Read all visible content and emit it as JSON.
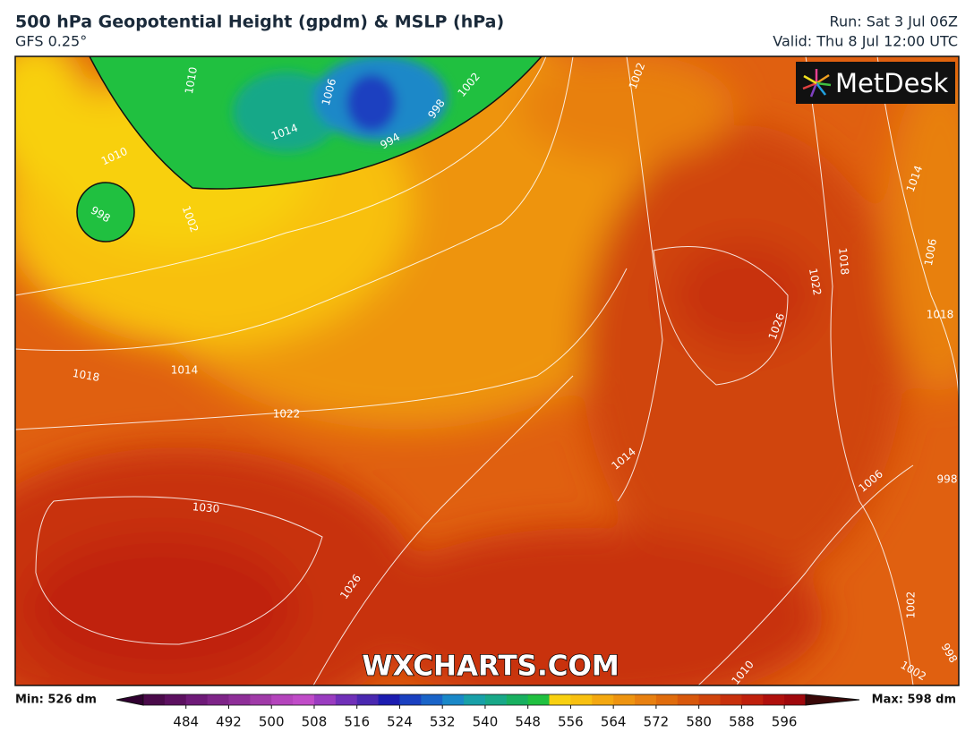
{
  "header": {
    "title": "500 hPa Geopotential Height (gpdm) & MSLP (hPa)",
    "model": "GFS 0.25°",
    "run": "Run: Sat 3 Jul 06Z",
    "valid": "Valid: Thu 8 Jul 12:00 UTC"
  },
  "map": {
    "logo": "MetDesk",
    "watermark": "WXCHARTS.COM",
    "contour_labels": [
      "1010",
      "1006",
      "1014",
      "1002",
      "998",
      "994",
      "1002",
      "1010",
      "998",
      "1002",
      "1018",
      "1014",
      "1022",
      "1030",
      "1026",
      "1014",
      "1006",
      "998",
      "1026",
      "1022",
      "1018",
      "1014",
      "1006",
      "1018",
      "1002",
      "1010",
      "1002",
      "998"
    ]
  },
  "legend": {
    "min": "Min: 526 dm",
    "max": "Max: 598 dm",
    "ticks": [
      484,
      492,
      500,
      508,
      516,
      524,
      532,
      540,
      548,
      556,
      564,
      572,
      580,
      588,
      596
    ],
    "colors": [
      "#4a0a4a",
      "#5c1060",
      "#6e1a78",
      "#7e2488",
      "#8e2e98",
      "#a03aa8",
      "#b444bc",
      "#c04cc8",
      "#9a3cc0",
      "#7030b8",
      "#4a28b0",
      "#1c1cb0",
      "#1a40c0",
      "#1a64c8",
      "#1a88c8",
      "#18a0a8",
      "#18a888",
      "#18b060",
      "#20c040",
      "#f8d010",
      "#f8c010",
      "#f4a810",
      "#ee9410",
      "#e88010",
      "#e06c0c",
      "#d8580c",
      "#d0440c",
      "#c8300c",
      "#c0200c",
      "#b0100c",
      "#a0080c"
    ]
  }
}
